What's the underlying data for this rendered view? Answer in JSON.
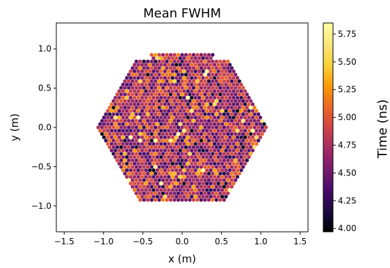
{
  "chart_data": {
    "type": "heatmap",
    "subtype": "hexagonal camera pixel map",
    "title": "Mean FWHM",
    "xlabel": "x (m)",
    "ylabel": "y (m)",
    "xlim": [
      -1.6,
      1.6
    ],
    "ylim": [
      -1.33,
      1.33
    ],
    "xticks": [
      -1.5,
      -1.0,
      -0.5,
      0.0,
      0.5,
      1.0,
      1.5
    ],
    "xtick_labels": [
      "−1.5",
      "−1.0",
      "−0.5",
      "0.0",
      "0.5",
      "1.0",
      "1.5"
    ],
    "yticks": [
      -1.0,
      -0.5,
      0.0,
      0.5,
      1.0
    ],
    "ytick_labels": [
      "−1.0",
      "−0.5",
      "0.0",
      "0.5",
      "1.0"
    ],
    "grid": false,
    "colormap": "inferno",
    "colorbar": {
      "label": "Time (ns)",
      "range": [
        3.97,
        5.85
      ],
      "ticks": [
        4.0,
        4.25,
        4.5,
        4.75,
        5.0,
        5.25,
        5.5,
        5.75
      ],
      "tick_labels": [
        "4.00",
        "4.25",
        "4.50",
        "4.75",
        "5.00",
        "5.25",
        "5.50",
        "5.75"
      ]
    },
    "camera": {
      "shape": "flat-top hexagon with a notch on the top edge",
      "circumradius_m": 1.08,
      "pixel_pitch_m": 0.0485,
      "value_mean_ns": 4.72,
      "value_range_ns": [
        3.97,
        5.85
      ]
    }
  }
}
